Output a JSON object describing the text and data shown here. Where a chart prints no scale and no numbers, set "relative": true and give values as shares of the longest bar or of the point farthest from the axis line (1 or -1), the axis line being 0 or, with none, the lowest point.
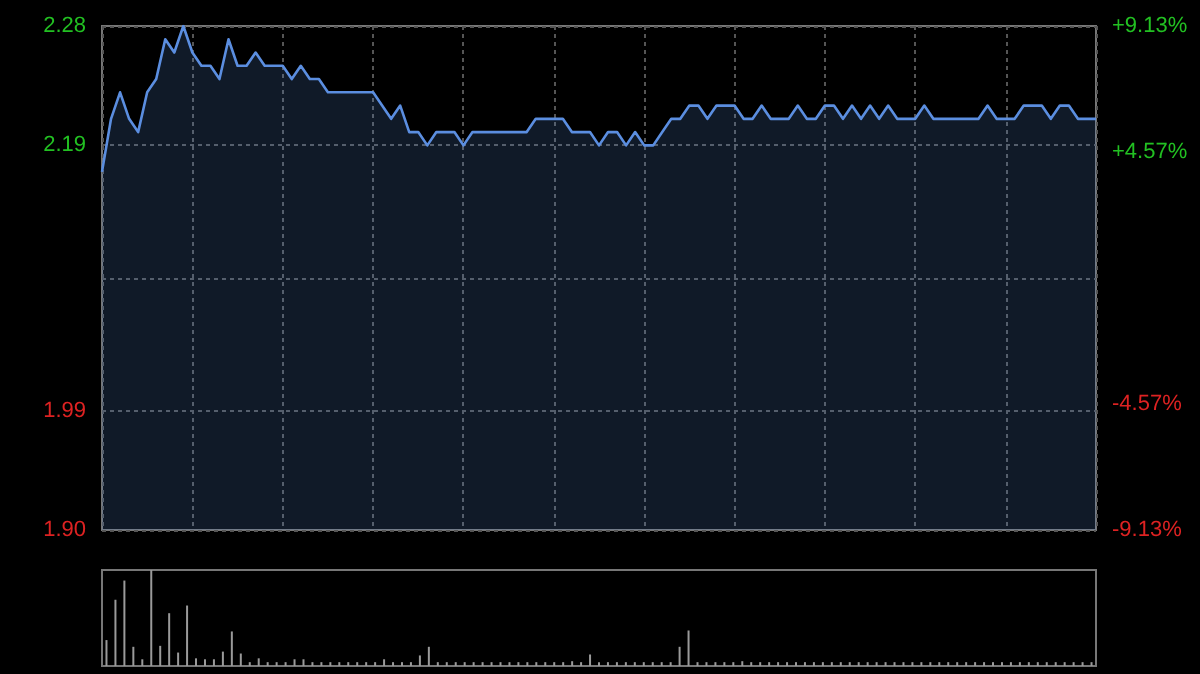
{
  "chart_data": [
    {
      "type": "area",
      "color": "#5b8ee0",
      "categories": [
        null,
        null,
        null,
        null,
        null,
        null,
        null,
        null,
        null,
        null,
        null,
        null,
        null,
        null,
        null,
        null,
        null,
        null,
        null,
        null,
        null,
        null,
        null,
        null,
        null,
        null,
        null,
        null,
        null,
        null,
        null,
        null,
        null,
        null,
        null,
        null,
        null,
        null,
        null,
        null,
        null,
        null,
        null,
        null,
        null,
        null,
        null,
        null,
        null,
        null,
        null,
        null,
        null,
        null,
        null,
        null,
        null,
        null,
        null,
        null,
        null,
        null,
        null,
        null,
        null,
        null,
        null,
        null,
        null,
        null,
        null,
        null,
        null,
        null,
        null,
        null,
        null,
        null,
        null,
        null,
        null,
        null,
        null,
        null,
        null,
        null,
        null,
        null,
        null,
        null,
        null,
        null,
        null,
        null,
        null,
        null,
        null,
        null,
        null,
        null,
        null,
        null,
        null,
        null,
        null,
        null,
        null,
        null,
        null,
        null,
        null
      ],
      "values": [
        2.17,
        2.21,
        2.23,
        2.21,
        2.2,
        2.23,
        2.24,
        2.27,
        2.26,
        2.28,
        2.26,
        2.25,
        2.25,
        2.24,
        2.27,
        2.25,
        2.25,
        2.26,
        2.25,
        2.25,
        2.25,
        2.24,
        2.25,
        2.24,
        2.24,
        2.23,
        2.23,
        2.23,
        2.23,
        2.23,
        2.23,
        2.22,
        2.21,
        2.22,
        2.2,
        2.2,
        2.19,
        2.2,
        2.2,
        2.2,
        2.19,
        2.2,
        2.2,
        2.2,
        2.2,
        2.2,
        2.2,
        2.2,
        2.21,
        2.21,
        2.21,
        2.21,
        2.2,
        2.2,
        2.2,
        2.19,
        2.2,
        2.2,
        2.19,
        2.2,
        2.19,
        2.19,
        2.2,
        2.21,
        2.21,
        2.22,
        2.22,
        2.21,
        2.22,
        2.22,
        2.22,
        2.21,
        2.21,
        2.22,
        2.21,
        2.21,
        2.21,
        2.22,
        2.21,
        2.21,
        2.22,
        2.22,
        2.21,
        2.22,
        2.21,
        2.22,
        2.21,
        2.22,
        2.21,
        2.21,
        2.21,
        2.22,
        2.21,
        2.21,
        2.21,
        2.21,
        2.21,
        2.21,
        2.22,
        2.21,
        2.21,
        2.21,
        2.22,
        2.22,
        2.22,
        2.21,
        2.22,
        2.22,
        2.21,
        2.21,
        2.21
      ],
      "ylim": [
        1.9,
        2.28
      ],
      "yticks": [
        {
          "value": 1.9,
          "label": "1.90"
        },
        1.99,
        {
          "value": 2.09,
          "label": null
        },
        2.19,
        2.28
      ],
      "y2lim": [
        -9.13,
        9.13
      ],
      "y2ticks": [
        {
          "value": -9.13,
          "label": "-9.13%"
        },
        {
          "value": -4.57,
          "label": "-4.57%"
        },
        {
          "value": 0,
          "label": null
        },
        {
          "value": 4.57,
          "label": "+4.57%"
        },
        {
          "value": 9.13,
          "label": "+9.13%"
        }
      ],
      "grid": true
    },
    {
      "type": "bar",
      "color": "#9a9a9a",
      "relative": true,
      "categories": [
        null,
        null,
        null,
        null,
        null,
        null,
        null,
        null,
        null,
        null,
        null,
        null,
        null,
        null,
        null,
        null,
        null,
        null,
        null,
        null,
        null,
        null,
        null,
        null,
        null,
        null,
        null,
        null,
        null,
        null,
        null,
        null,
        null,
        null,
        null,
        null,
        null,
        null,
        null,
        null,
        null,
        null,
        null,
        null,
        null,
        null,
        null,
        null,
        null,
        null,
        null,
        null,
        null,
        null,
        null,
        null,
        null,
        null,
        null,
        null,
        null,
        null,
        null,
        null,
        null,
        null,
        null,
        null,
        null,
        null,
        null,
        null,
        null,
        null,
        null,
        null,
        null,
        null,
        null,
        null,
        null,
        null,
        null,
        null,
        null,
        null,
        null,
        null,
        null,
        null,
        null,
        null,
        null,
        null,
        null,
        null,
        null,
        null,
        null,
        null,
        null,
        null,
        null,
        null,
        null,
        null,
        null,
        null,
        null,
        null,
        null
      ],
      "values": [
        0.27,
        0.69,
        0.89,
        0.2,
        0.07,
        1,
        0.21,
        0.55,
        0.14,
        0.63,
        0.08,
        0.07,
        0.07,
        0.15,
        0.36,
        0.13,
        0.04,
        0.08,
        0.04,
        0.04,
        0.04,
        0.07,
        0.07,
        0.04,
        0.04,
        0.04,
        0.04,
        0.04,
        0.04,
        0.04,
        0.04,
        0.07,
        0.04,
        0.04,
        0.04,
        0.11,
        0.2,
        0.04,
        0.04,
        0.04,
        0.04,
        0.04,
        0.04,
        0.04,
        0.04,
        0.04,
        0.04,
        0.04,
        0.04,
        0.04,
        0.04,
        0.04,
        0.05,
        0.04,
        0.12,
        0.04,
        0.04,
        0.04,
        0.04,
        0.04,
        0.04,
        0.04,
        0.04,
        0.04,
        0.2,
        0.37,
        0.04,
        0.04,
        0.04,
        0.04,
        0.04,
        0.05,
        0.04,
        0.04,
        0.04,
        0.04,
        0.04,
        0.04,
        0.04,
        0.04,
        0.04,
        0.04,
        0.04,
        0.04,
        0.04,
        0.04,
        0.04,
        0.04,
        0.04,
        0.04,
        0.04,
        0.04,
        0.04,
        0.04,
        0.04,
        0.04,
        0.04,
        0.04,
        0.04,
        0.04,
        0.04,
        0.04,
        0.04,
        0.04,
        0.04,
        0.04,
        0.04,
        0.04,
        0.04,
        0.04,
        0.04
      ],
      "grid": false
    }
  ]
}
